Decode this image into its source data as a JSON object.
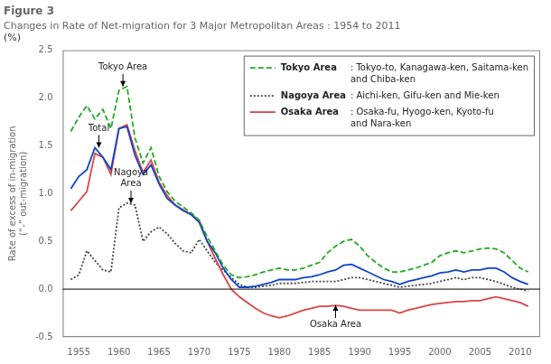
{
  "chart_data": {
    "type": "line",
    "title": "Figure 3",
    "subtitle": "Changes in Rate of Net‑migration for 3 Major Metropolitan Areas : 1954 to 2011",
    "ylabel": "Rate of excess of in-migration\n(“-” out-migration)",
    "y_unit": "(%)",
    "x": [
      1954,
      1955,
      1956,
      1957,
      1958,
      1959,
      1960,
      1961,
      1962,
      1963,
      1964,
      1965,
      1966,
      1967,
      1968,
      1969,
      1970,
      1971,
      1972,
      1973,
      1974,
      1975,
      1976,
      1977,
      1978,
      1979,
      1980,
      1981,
      1982,
      1983,
      1984,
      1985,
      1986,
      1987,
      1988,
      1989,
      1990,
      1991,
      1992,
      1993,
      1994,
      1995,
      1996,
      1997,
      1998,
      1999,
      2000,
      2001,
      2002,
      2003,
      2004,
      2005,
      2006,
      2007,
      2008,
      2009,
      2010,
      2011
    ],
    "xlim": [
      1953,
      2012.5
    ],
    "ylim": [
      -0.5,
      2.5
    ],
    "xticks": [
      1955,
      1960,
      1965,
      1970,
      1975,
      1980,
      1985,
      1990,
      1995,
      2000,
      2005,
      2010
    ],
    "yticks": [
      {
        "value": -0.5,
        "label": "-0.5"
      },
      {
        "value": 0.0,
        "label": "0.0"
      },
      {
        "value": 0.5,
        "label": "0.5"
      },
      {
        "value": 1.0,
        "label": "1.0"
      },
      {
        "value": 1.5,
        "label": "1.5"
      },
      {
        "value": 2.0,
        "label": "2.0"
      },
      {
        "value": 2.5,
        "label": "2.5"
      }
    ],
    "grid": false,
    "reference_line": 0,
    "legend": "upper right",
    "series": [
      {
        "name": "Tokyo Area",
        "color": "#22aa22",
        "line_style": "dashed",
        "values": [
          1.65,
          1.8,
          1.92,
          1.78,
          1.88,
          1.68,
          2.08,
          2.12,
          1.58,
          1.32,
          1.48,
          1.18,
          1.02,
          0.92,
          0.86,
          0.8,
          0.72,
          0.55,
          0.4,
          0.25,
          0.15,
          0.12,
          0.13,
          0.15,
          0.18,
          0.2,
          0.22,
          0.2,
          0.2,
          0.22,
          0.25,
          0.28,
          0.38,
          0.45,
          0.5,
          0.52,
          0.45,
          0.35,
          0.28,
          0.22,
          0.18,
          0.18,
          0.2,
          0.22,
          0.25,
          0.28,
          0.35,
          0.38,
          0.4,
          0.38,
          0.4,
          0.42,
          0.43,
          0.42,
          0.38,
          0.3,
          0.22,
          0.18
        ]
      },
      {
        "name": "Total",
        "color": "#1144cc",
        "line_style": "solid",
        "values": [
          1.05,
          1.18,
          1.25,
          1.48,
          1.38,
          1.25,
          1.68,
          1.7,
          1.4,
          1.2,
          1.3,
          1.1,
          0.95,
          0.88,
          0.82,
          0.78,
          0.7,
          0.5,
          0.38,
          0.22,
          0.1,
          0.02,
          0.02,
          0.03,
          0.05,
          0.07,
          0.1,
          0.1,
          0.1,
          0.12,
          0.13,
          0.15,
          0.18,
          0.2,
          0.25,
          0.26,
          0.22,
          0.18,
          0.14,
          0.1,
          0.08,
          0.05,
          0.08,
          0.1,
          0.12,
          0.14,
          0.17,
          0.18,
          0.2,
          0.18,
          0.2,
          0.2,
          0.22,
          0.22,
          0.18,
          0.12,
          0.08,
          0.05
        ]
      },
      {
        "name": "Osaka Area",
        "color": "#dd4444",
        "line_style": "solid",
        "values": [
          0.82,
          0.92,
          1.02,
          1.42,
          1.38,
          1.2,
          1.68,
          1.72,
          1.45,
          1.22,
          1.35,
          1.12,
          0.98,
          0.88,
          0.83,
          0.78,
          0.72,
          0.5,
          0.32,
          0.15,
          0.0,
          -0.08,
          -0.14,
          -0.2,
          -0.25,
          -0.28,
          -0.3,
          -0.28,
          -0.25,
          -0.22,
          -0.2,
          -0.18,
          -0.18,
          -0.17,
          -0.18,
          -0.2,
          -0.22,
          -0.22,
          -0.22,
          -0.22,
          -0.22,
          -0.25,
          -0.22,
          -0.2,
          -0.18,
          -0.16,
          -0.15,
          -0.14,
          -0.13,
          -0.13,
          -0.12,
          -0.12,
          -0.1,
          -0.08,
          -0.1,
          -0.12,
          -0.14,
          -0.18
        ]
      },
      {
        "name": "Nagoya Area",
        "color": "#444444",
        "line_style": "dotted",
        "values": [
          0.1,
          0.15,
          0.4,
          0.3,
          0.2,
          0.18,
          0.85,
          0.9,
          0.88,
          0.5,
          0.6,
          0.65,
          0.58,
          0.48,
          0.4,
          0.38,
          0.52,
          0.4,
          0.28,
          0.2,
          0.12,
          0.05,
          0.02,
          0.02,
          0.03,
          0.04,
          0.06,
          0.06,
          0.06,
          0.07,
          0.08,
          0.08,
          0.08,
          0.08,
          0.1,
          0.12,
          0.12,
          0.1,
          0.08,
          0.06,
          0.04,
          0.02,
          0.03,
          0.04,
          0.05,
          0.06,
          0.08,
          0.1,
          0.12,
          0.1,
          0.12,
          0.12,
          0.1,
          0.08,
          0.05,
          0.02,
          0.0,
          -0.02
        ]
      }
    ],
    "legend_entries": [
      {
        "name": "Tokyo Area",
        "description": ": Tokyo-to, Kanagawa-ken, Saitama-ken\nand Chiba-ken"
      },
      {
        "name": "Nagoya Area",
        "description": ": Aichi-ken, Gifu-ken and Mie-ken"
      },
      {
        "name": "Osaka Area",
        "description": ": Osaka-fu, Hyogo-ken, Kyoto-fu\nand Nara-ken"
      }
    ],
    "annotations": [
      {
        "text": "Tokyo Area",
        "x": 1960.5,
        "y": 2.12
      },
      {
        "text": "Total",
        "x": 1957.5,
        "y": 1.48
      },
      {
        "text": "Nagoya\nArea",
        "x": 1961.5,
        "y": 0.9
      },
      {
        "text": "Osaka Area",
        "x": 1987.0,
        "y": -0.17
      }
    ]
  }
}
